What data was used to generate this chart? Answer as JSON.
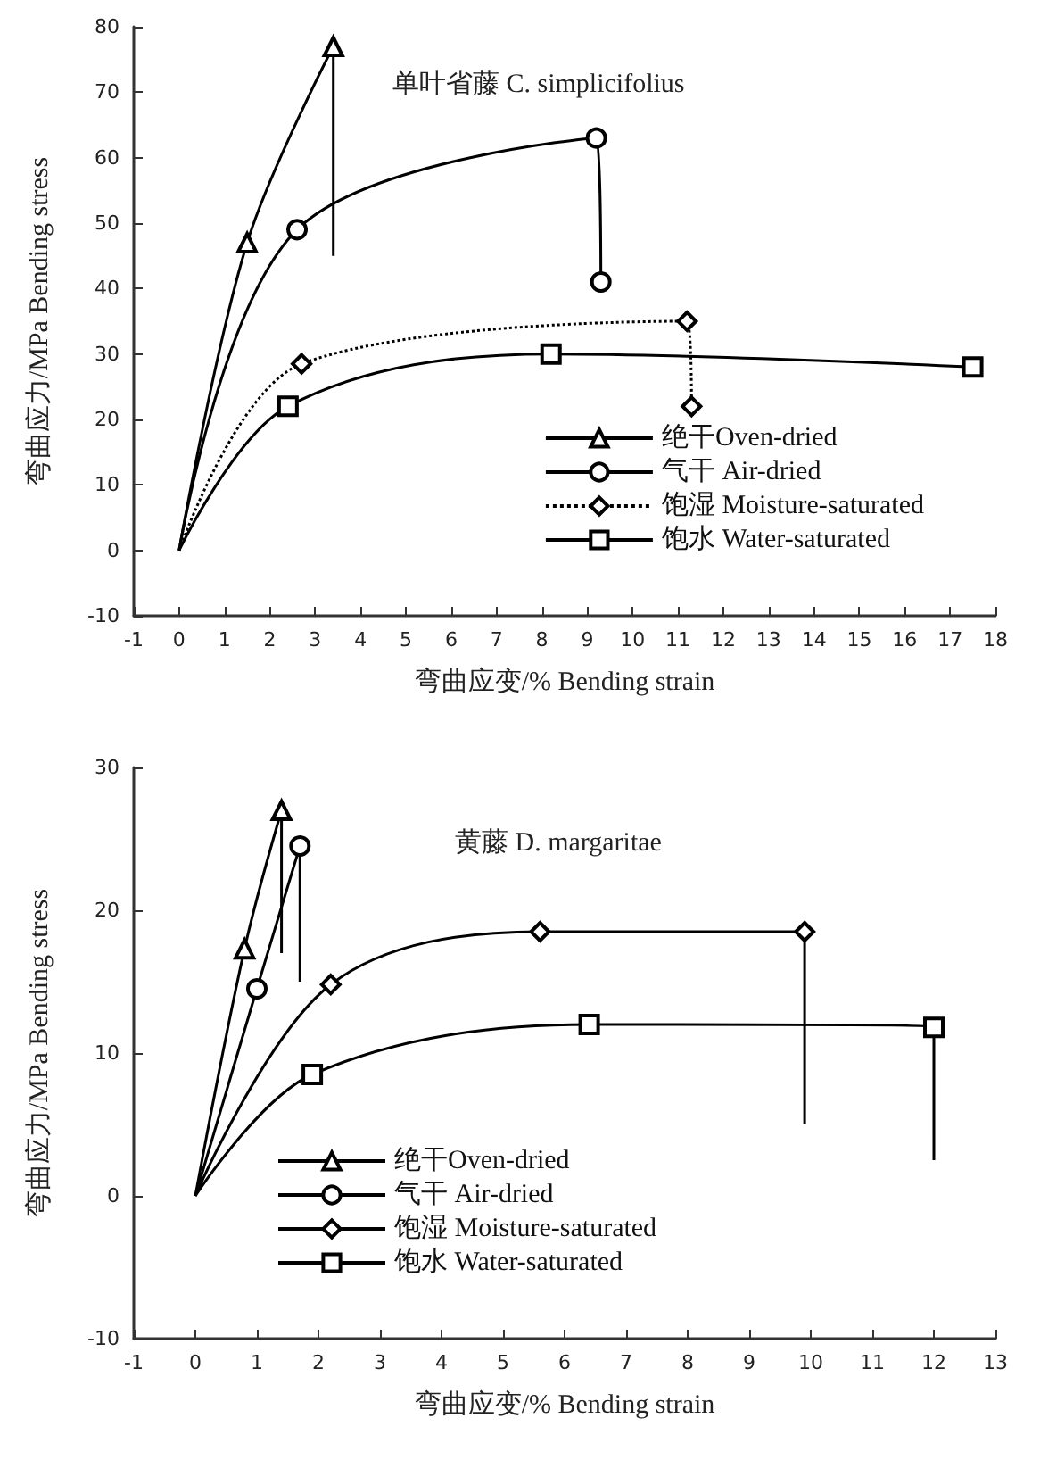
{
  "chart_data": [
    {
      "type": "line",
      "title": "单叶省藤 C. simplicifolius",
      "xlabel": "弯曲应变/% Bending strain",
      "ylabel": "弯曲应力/MPa Bending stress",
      "xlim": [
        -1,
        18
      ],
      "xticks": [
        -1,
        0,
        1,
        2,
        3,
        4,
        5,
        6,
        7,
        8,
        9,
        10,
        11,
        12,
        13,
        14,
        15,
        16,
        17,
        18
      ],
      "ylim": [
        -10,
        80
      ],
      "yticks": [
        -10,
        0,
        10,
        20,
        30,
        40,
        50,
        60,
        70,
        80
      ],
      "grid": false,
      "legend": "bottom right",
      "series": [
        {
          "name": "绝干Oven-dried",
          "color": "#000000",
          "marker": "triangle",
          "line_style": "solid",
          "x": [
            0,
            1.5,
            3.4,
            3.4
          ],
          "values": [
            0,
            47,
            77,
            45
          ]
        },
        {
          "name": "气干 Air-dried",
          "color": "#000000",
          "marker": "circle",
          "line_style": "solid",
          "x": [
            0,
            2.6,
            9.2,
            9.3
          ],
          "values": [
            0,
            49,
            63,
            41
          ]
        },
        {
          "name": "饱湿 Moisture-saturated",
          "color": "#000000",
          "marker": "diamond",
          "line_style": "dotted",
          "x": [
            0,
            2.7,
            11.2,
            11.3
          ],
          "values": [
            0,
            28.5,
            35,
            22
          ]
        },
        {
          "name": "饱水 Water-saturated",
          "color": "#000000",
          "marker": "square",
          "line_style": "solid",
          "x": [
            0,
            2.4,
            8.2,
            17.5
          ],
          "values": [
            0,
            22,
            30,
            28
          ]
        }
      ]
    },
    {
      "type": "line",
      "title": "黄藤 D. margaritae",
      "xlabel": "弯曲应变/% Bending strain",
      "ylabel": "弯曲应力/MPa Bending stress",
      "xlim": [
        -1,
        13
      ],
      "xticks": [
        -1,
        0,
        1,
        2,
        3,
        4,
        5,
        6,
        7,
        8,
        9,
        10,
        11,
        12,
        13
      ],
      "ylim": [
        -10,
        30
      ],
      "yticks": [
        -10,
        0,
        10,
        20,
        30
      ],
      "grid": false,
      "legend": "bottom",
      "series": [
        {
          "name": "绝干Oven-dried",
          "color": "#000000",
          "marker": "triangle",
          "line_style": "solid",
          "x": [
            0,
            0.8,
            1.4,
            1.4
          ],
          "values": [
            0,
            17.3,
            27,
            17
          ]
        },
        {
          "name": "气干 Air-dried",
          "color": "#000000",
          "marker": "circle",
          "line_style": "solid",
          "x": [
            0,
            1,
            1.7,
            1.7
          ],
          "values": [
            0,
            14.5,
            24.5,
            15
          ]
        },
        {
          "name": "饱湿 Moisture-saturated",
          "color": "#000000",
          "marker": "diamond",
          "line_style": "solid",
          "x": [
            0,
            2.2,
            5.6,
            9.9,
            9.9
          ],
          "values": [
            0,
            14.8,
            18.5,
            18.5,
            5
          ]
        },
        {
          "name": "饱水 Water-saturated",
          "color": "#000000",
          "marker": "square",
          "line_style": "solid",
          "x": [
            0,
            1.9,
            6.4,
            12,
            12
          ],
          "values": [
            0,
            8.5,
            12,
            11.8,
            2.5
          ]
        }
      ]
    }
  ]
}
